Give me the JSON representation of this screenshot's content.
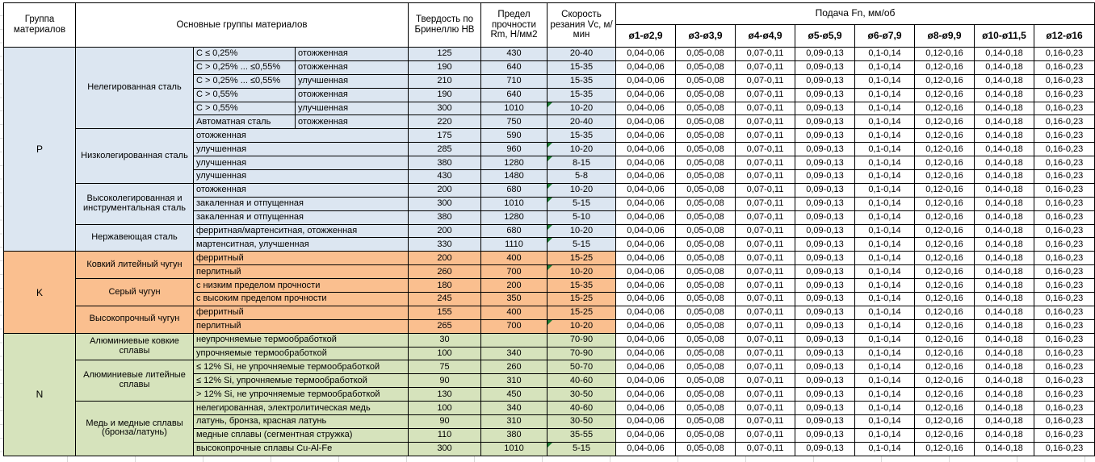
{
  "header": {
    "col_group": "Группа материалов",
    "col_main_groups": "Основные группы материалов",
    "col_hardness": "Твердость по Бринеллю HB",
    "col_strength": "Предел прочности Rm, Н/мм2",
    "col_speed": "Скорость резания Vc, м/мин",
    "feed_title": "Подача Fn, мм/об",
    "feed_columns": [
      "ø1-ø2,9",
      "ø3-ø3,9",
      "ø4-ø4,9",
      "ø5-ø5,9",
      "ø6-ø7,9",
      "ø8-ø9,9",
      "ø10-ø11,5",
      "ø12-ø16"
    ]
  },
  "colors": {
    "section_p": "#DCE6F1",
    "section_k": "#FABF8F",
    "section_n": "#D6E3BC",
    "marker": "#1e7e34"
  },
  "feed_values": [
    "0,04-0,06",
    "0,05-0,08",
    "0,07-0,11",
    "0,09-0,13",
    "0,1-0,14",
    "0,12-0,16",
    "0,14-0,18",
    "0,16-0,23"
  ],
  "sections": [
    {
      "letter": "P",
      "color": "#DCE6F1",
      "groups": [
        {
          "name": "Нелегированная сталь",
          "rows": [
            {
              "c1": "C ≤ 0,25%",
              "c2": "отожженная",
              "hb": "125",
              "rm": "430",
              "vc": "20-40",
              "marker": false
            },
            {
              "c1": "C > 0,25% ... ≤0,55%",
              "c2": "отожженная",
              "hb": "190",
              "rm": "640",
              "vc": "15-35",
              "marker": false
            },
            {
              "c1": "C > 0,25% ... ≤0,55%",
              "c2": "улучшенная",
              "hb": "210",
              "rm": "710",
              "vc": "15-35",
              "marker": false
            },
            {
              "c1": "C > 0,55%",
              "c2": "отожженная",
              "hb": "190",
              "rm": "640",
              "vc": "15-35",
              "marker": false
            },
            {
              "c1": "C > 0,55%",
              "c2": "улучшенная",
              "hb": "300",
              "rm": "1010",
              "vc": "10-20",
              "marker": true
            },
            {
              "c1": "Автоматная сталь",
              "c2": "отожженная",
              "hb": "220",
              "rm": "750",
              "vc": "20-40",
              "marker": false
            }
          ]
        },
        {
          "name": "Низколегированная сталь",
          "rows": [
            {
              "d": "отожженная",
              "hb": "175",
              "rm": "590",
              "vc": "15-35",
              "marker": false
            },
            {
              "d": "улучшенная",
              "hb": "285",
              "rm": "960",
              "vc": "10-20",
              "marker": true
            },
            {
              "d": "улучшенная",
              "hb": "380",
              "rm": "1280",
              "vc": "8-15",
              "marker": true
            },
            {
              "d": "улучшенная",
              "hb": "430",
              "rm": "1480",
              "vc": "5-8",
              "marker": false
            }
          ]
        },
        {
          "name": "Высоколегированная и инструментальная сталь",
          "rows": [
            {
              "d": "отожженная",
              "hb": "200",
              "rm": "680",
              "vc": "10-20",
              "marker": true
            },
            {
              "d": "закаленная и отпущенная",
              "hb": "300",
              "rm": "1010",
              "vc": "5-15",
              "marker": true
            },
            {
              "d": "закаленная и отпущенная",
              "hb": "380",
              "rm": "1280",
              "vc": "5-10",
              "marker": false
            }
          ]
        },
        {
          "name": "Нержавеющая сталь",
          "rows": [
            {
              "d": "ферритная/мартенситная, отожженная",
              "hb": "200",
              "rm": "680",
              "vc": "10-20",
              "marker": true
            },
            {
              "d": "мартенситная, улучшенная",
              "hb": "330",
              "rm": "1110",
              "vc": "5-15",
              "marker": true
            }
          ]
        }
      ]
    },
    {
      "letter": "K",
      "color": "#FABF8F",
      "groups": [
        {
          "name": "Ковкий литейный чугун",
          "rows": [
            {
              "d": "ферритный",
              "hb": "200",
              "rm": "400",
              "vc": "15-25",
              "marker": false
            },
            {
              "d": "перлитный",
              "hb": "260",
              "rm": "700",
              "vc": "10-20",
              "marker": true
            }
          ]
        },
        {
          "name": "Серый чугун",
          "rows": [
            {
              "d": "с низким пределом прочности",
              "hb": "180",
              "rm": "200",
              "vc": "15-35",
              "marker": false
            },
            {
              "d": "с высоким пределом прочности",
              "hb": "245",
              "rm": "350",
              "vc": "15-25",
              "marker": false
            }
          ]
        },
        {
          "name": "Высокопрочный чугун",
          "rows": [
            {
              "d": "ферритный",
              "hb": "155",
              "rm": "400",
              "vc": "15-25",
              "marker": false
            },
            {
              "d": "перлитный",
              "hb": "265",
              "rm": "700",
              "vc": "10-20",
              "marker": true
            }
          ]
        }
      ]
    },
    {
      "letter": "N",
      "color": "#D6E3BC",
      "groups": [
        {
          "name": "Алюминиевые ковкие сплавы",
          "rows": [
            {
              "d": "неупрочняемые термообработкой",
              "hb": "30",
              "rm": "",
              "vc": "70-90",
              "marker": false
            },
            {
              "d": "упрочняемые термообработкой",
              "hb": "100",
              "rm": "340",
              "vc": "70-90",
              "marker": false
            }
          ]
        },
        {
          "name": "Алюминиевые литейные сплавы",
          "rows": [
            {
              "d": "≤ 12% Si, не упрочняемые термообработкой",
              "hb": "75",
              "rm": "260",
              "vc": "50-70",
              "marker": false
            },
            {
              "d": "≤ 12% Si, упрочняемые термообработкой",
              "hb": "90",
              "rm": "310",
              "vc": "40-60",
              "marker": false
            },
            {
              "d": "> 12% Si, не упрочняемые термообработкой",
              "hb": "130",
              "rm": "450",
              "vc": "30-50",
              "marker": false
            }
          ]
        },
        {
          "name": "Медь и медные сплавы (бронза/латунь)",
          "rows": [
            {
              "d": "нелегированная, электролитическая медь",
              "hb": "100",
              "rm": "340",
              "vc": "40-60",
              "marker": false
            },
            {
              "d": "латунь, бронза, красная латунь",
              "hb": "90",
              "rm": "310",
              "vc": "30-50",
              "marker": false
            },
            {
              "d": "медные сплавы (сегментная стружка)",
              "hb": "110",
              "rm": "380",
              "vc": "35-55",
              "marker": false
            },
            {
              "d": "высокопрочные сплавы Cu-Al-Fe",
              "hb": "300",
              "rm": "1010",
              "vc": "5-15",
              "marker": true
            }
          ]
        }
      ]
    }
  ]
}
